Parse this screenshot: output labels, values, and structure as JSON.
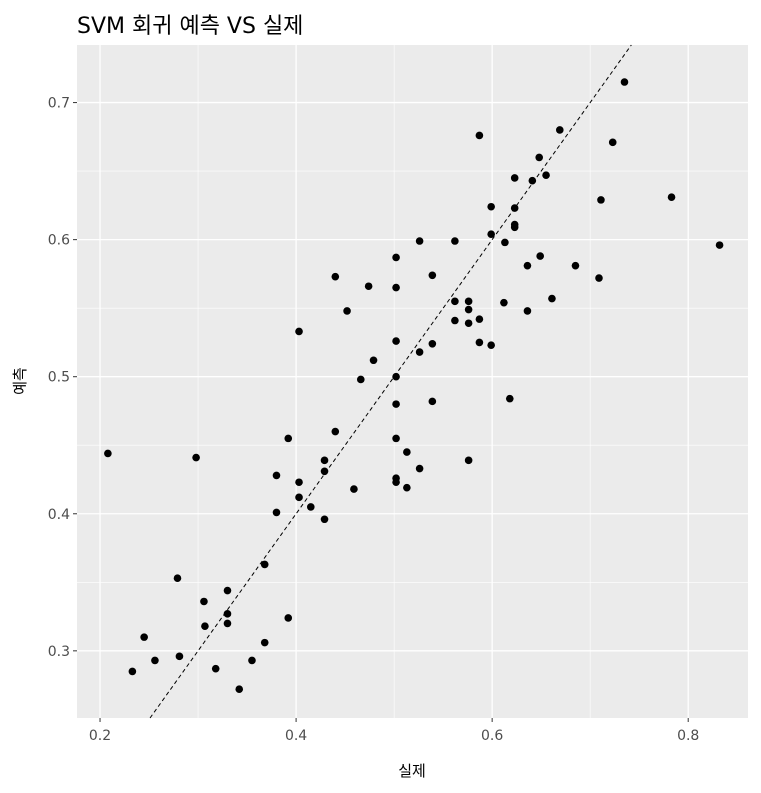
{
  "chart_data": {
    "type": "scatter",
    "title": "SVM 회귀 예측 VS 실제",
    "xlabel": "실제",
    "ylabel": "예측",
    "xlim": [
      0.1765,
      0.861
    ],
    "ylim": [
      0.251,
      0.742
    ],
    "xticks": [
      0.2,
      0.4,
      0.6,
      0.8
    ],
    "xtick_labels": [
      "0.2",
      "0.4",
      "0.6",
      "0.8"
    ],
    "yticks": [
      0.3,
      0.4,
      0.5,
      0.6,
      0.7
    ],
    "ytick_labels": [
      "0.3",
      "0.4",
      "0.5",
      "0.6",
      "0.7"
    ],
    "grid": true,
    "reference_line": {
      "type": "identity",
      "style": "dashed",
      "slope": 1,
      "intercept": 0
    },
    "colors": {
      "panel": "#ebebeb",
      "grid": "#ffffff",
      "points": "#000000",
      "text": "#4d4d4d"
    },
    "points": [
      [
        0.208,
        0.444
      ],
      [
        0.298,
        0.441
      ],
      [
        0.245,
        0.31
      ],
      [
        0.256,
        0.293
      ],
      [
        0.233,
        0.285
      ],
      [
        0.279,
        0.353
      ],
      [
        0.281,
        0.296
      ],
      [
        0.306,
        0.336
      ],
      [
        0.307,
        0.318
      ],
      [
        0.318,
        0.287
      ],
      [
        0.33,
        0.344
      ],
      [
        0.33,
        0.327
      ],
      [
        0.33,
        0.32
      ],
      [
        0.342,
        0.272
      ],
      [
        0.355,
        0.293
      ],
      [
        0.368,
        0.363
      ],
      [
        0.368,
        0.306
      ],
      [
        0.38,
        0.428
      ],
      [
        0.38,
        0.401
      ],
      [
        0.392,
        0.324
      ],
      [
        0.392,
        0.455
      ],
      [
        0.403,
        0.423
      ],
      [
        0.403,
        0.412
      ],
      [
        0.403,
        0.533
      ],
      [
        0.415,
        0.405
      ],
      [
        0.429,
        0.439
      ],
      [
        0.429,
        0.431
      ],
      [
        0.429,
        0.396
      ],
      [
        0.44,
        0.46
      ],
      [
        0.44,
        0.573
      ],
      [
        0.452,
        0.548
      ],
      [
        0.459,
        0.418
      ],
      [
        0.466,
        0.498
      ],
      [
        0.474,
        0.566
      ],
      [
        0.479,
        0.512
      ],
      [
        0.502,
        0.587
      ],
      [
        0.502,
        0.565
      ],
      [
        0.502,
        0.526
      ],
      [
        0.502,
        0.5
      ],
      [
        0.502,
        0.48
      ],
      [
        0.502,
        0.455
      ],
      [
        0.502,
        0.426
      ],
      [
        0.502,
        0.423
      ],
      [
        0.513,
        0.445
      ],
      [
        0.513,
        0.419
      ],
      [
        0.526,
        0.599
      ],
      [
        0.526,
        0.518
      ],
      [
        0.526,
        0.433
      ],
      [
        0.539,
        0.574
      ],
      [
        0.539,
        0.524
      ],
      [
        0.539,
        0.482
      ],
      [
        0.562,
        0.599
      ],
      [
        0.562,
        0.555
      ],
      [
        0.562,
        0.541
      ],
      [
        0.576,
        0.555
      ],
      [
        0.576,
        0.549
      ],
      [
        0.576,
        0.539
      ],
      [
        0.576,
        0.439
      ],
      [
        0.587,
        0.676
      ],
      [
        0.587,
        0.542
      ],
      [
        0.587,
        0.525
      ],
      [
        0.599,
        0.624
      ],
      [
        0.599,
        0.604
      ],
      [
        0.599,
        0.523
      ],
      [
        0.612,
        0.554
      ],
      [
        0.613,
        0.598
      ],
      [
        0.618,
        0.484
      ],
      [
        0.623,
        0.645
      ],
      [
        0.623,
        0.623
      ],
      [
        0.623,
        0.611
      ],
      [
        0.623,
        0.609
      ],
      [
        0.636,
        0.581
      ],
      [
        0.636,
        0.548
      ],
      [
        0.641,
        0.643
      ],
      [
        0.648,
        0.66
      ],
      [
        0.649,
        0.588
      ],
      [
        0.655,
        0.647
      ],
      [
        0.661,
        0.557
      ],
      [
        0.669,
        0.68
      ],
      [
        0.685,
        0.581
      ],
      [
        0.709,
        0.572
      ],
      [
        0.711,
        0.629
      ],
      [
        0.723,
        0.671
      ],
      [
        0.735,
        0.715
      ],
      [
        0.783,
        0.631
      ],
      [
        0.832,
        0.596
      ]
    ]
  }
}
